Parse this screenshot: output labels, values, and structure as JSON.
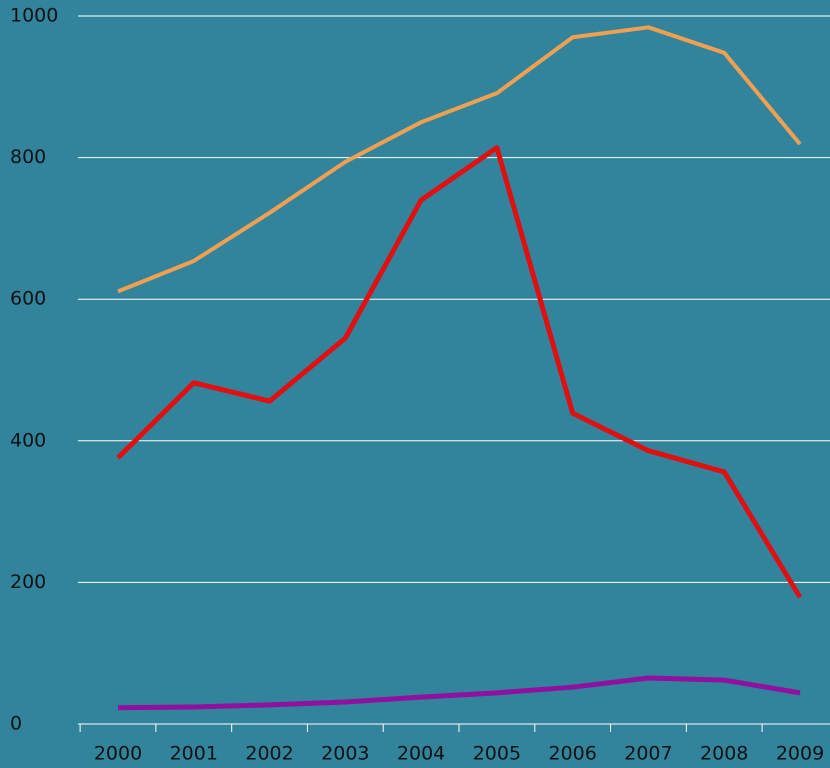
{
  "chart_data": {
    "type": "line",
    "categories": [
      "2000",
      "2001",
      "2002",
      "2003",
      "2004",
      "2005",
      "2006",
      "2007",
      "2008",
      "2009"
    ],
    "series": [
      {
        "color": "#f0a050",
        "values": [
          611,
          654,
          722,
          794,
          850,
          891,
          970,
          984,
          948,
          819
        ]
      },
      {
        "color": "#e01010",
        "values": [
          376,
          482,
          456,
          545,
          740,
          814,
          439,
          386,
          356,
          179
        ]
      },
      {
        "color": "#9010a0",
        "values": [
          23,
          24,
          27,
          31,
          38,
          44,
          52,
          65,
          62,
          44
        ]
      }
    ],
    "ylim": [
      0,
      1000
    ],
    "yticks": [
      0,
      200,
      400,
      600,
      800,
      1000
    ],
    "grid": true
  }
}
